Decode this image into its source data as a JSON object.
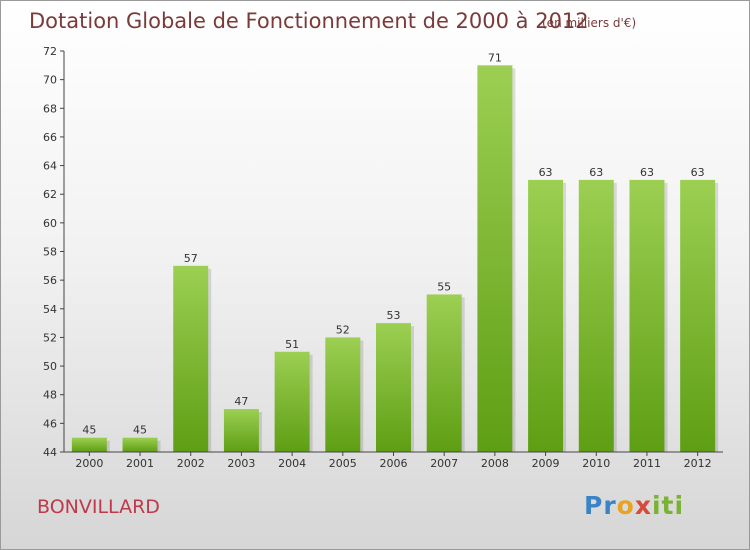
{
  "title": "Dotation Globale de Fonctionnement de 2000 à 2012",
  "unit_note": "(en milliers d'€)",
  "commune": "BONVILLARD",
  "logo": {
    "p1": "Pr",
    "p2": "o",
    "p3": "x",
    "p4": "iti"
  },
  "colors": {
    "bar_top": "#9ccf52",
    "bar_bottom": "#5e9e14",
    "title": "#7a3a3a",
    "commune": "#c0394a"
  },
  "chart_data": {
    "type": "bar",
    "categories": [
      "2000",
      "2001",
      "2002",
      "2003",
      "2004",
      "2005",
      "2006",
      "2007",
      "2008",
      "2009",
      "2010",
      "2011",
      "2012"
    ],
    "values": [
      45,
      45,
      57,
      47,
      51,
      52,
      53,
      55,
      71,
      63,
      63,
      63,
      63
    ],
    "ylim": [
      44,
      72
    ],
    "yticks": [
      44,
      46,
      48,
      50,
      52,
      54,
      56,
      58,
      60,
      62,
      64,
      66,
      68,
      70,
      72
    ],
    "grid": false
  }
}
